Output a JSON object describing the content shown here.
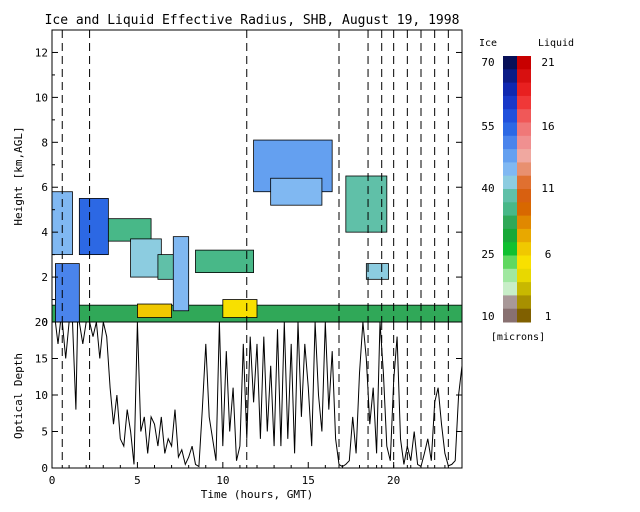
{
  "chart_data": [
    {
      "type": "heatmap",
      "title": "Ice and Liquid Effective Radius, SHB, August 19, 1998",
      "xlabel": "",
      "ylabel": "Height [km,AGL]",
      "xlim": [
        0,
        24
      ],
      "ylim": [
        0,
        13
      ],
      "y_ticks": [
        0,
        2,
        4,
        6,
        8,
        10,
        12
      ],
      "x_ticks": [
        0,
        5,
        10,
        15,
        20
      ],
      "dashed_times": [
        0.6,
        2.2,
        11.4,
        16.8,
        18.5,
        19.3,
        20.0,
        20.8,
        21.6,
        22.4,
        23.2
      ],
      "regions": [
        {
          "x0": 0.0,
          "x1": 24.0,
          "y0": 0.0,
          "y1": 0.75,
          "ice": 32,
          "phase": "ice"
        },
        {
          "x0": 0.2,
          "x1": 1.6,
          "y0": 0.0,
          "y1": 2.6,
          "ice": 50,
          "phase": "ice"
        },
        {
          "x0": 0.0,
          "x1": 1.2,
          "y0": 3.0,
          "y1": 5.8,
          "ice": 45,
          "phase": "ice"
        },
        {
          "x0": 1.6,
          "x1": 3.3,
          "y0": 3.0,
          "y1": 5.5,
          "ice": 55,
          "phase": "ice"
        },
        {
          "x0": 3.3,
          "x1": 5.8,
          "y0": 3.6,
          "y1": 4.6,
          "ice": 36,
          "phase": "ice"
        },
        {
          "x0": 4.6,
          "x1": 6.4,
          "y0": 2.0,
          "y1": 3.7,
          "ice": 42,
          "phase": "ice"
        },
        {
          "x0": 6.2,
          "x1": 7.2,
          "y0": 1.9,
          "y1": 3.0,
          "ice": 40,
          "phase": "ice"
        },
        {
          "x0": 7.1,
          "x1": 8.0,
          "y0": 0.5,
          "y1": 3.8,
          "ice": 44,
          "phase": "ice"
        },
        {
          "x0": 8.4,
          "x1": 11.8,
          "y0": 2.2,
          "y1": 3.2,
          "ice": 34,
          "phase": "ice"
        },
        {
          "x0": 11.8,
          "x1": 16.4,
          "y0": 5.8,
          "y1": 8.1,
          "ice": 48,
          "phase": "ice"
        },
        {
          "x0": 12.8,
          "x1": 15.8,
          "y0": 5.2,
          "y1": 6.4,
          "ice": 44,
          "phase": "ice"
        },
        {
          "x0": 17.2,
          "x1": 19.6,
          "y0": 4.0,
          "y1": 6.5,
          "ice": 38,
          "phase": "ice"
        },
        {
          "x0": 18.4,
          "x1": 19.7,
          "y0": 1.9,
          "y1": 2.6,
          "ice": 42,
          "phase": "ice"
        },
        {
          "x0": 5.0,
          "x1": 7.0,
          "y0": 0.2,
          "y1": 0.8,
          "liquid": 6,
          "phase": "liquid"
        },
        {
          "x0": 10.0,
          "x1": 12.0,
          "y0": 0.2,
          "y1": 1.0,
          "liquid": 5,
          "phase": "liquid"
        }
      ]
    },
    {
      "type": "line",
      "xlabel": "Time (hours, GMT)",
      "ylabel": "Optical Depth",
      "xlim": [
        0,
        24
      ],
      "ylim": [
        0,
        20
      ],
      "y_ticks": [
        0,
        5,
        10,
        15,
        20
      ],
      "x_ticks": [
        0,
        5,
        10,
        15,
        20
      ],
      "x": [
        0.0,
        0.2,
        0.35,
        0.5,
        0.6,
        0.8,
        1.0,
        1.2,
        1.4,
        1.5,
        1.6,
        1.8,
        2.0,
        2.2,
        2.4,
        2.6,
        2.8,
        3.0,
        3.2,
        3.4,
        3.6,
        3.8,
        4.0,
        4.2,
        4.4,
        4.6,
        4.8,
        5.0,
        5.2,
        5.4,
        5.6,
        5.8,
        6.0,
        6.2,
        6.4,
        6.6,
        6.8,
        7.0,
        7.2,
        7.4,
        7.6,
        7.8,
        8.0,
        8.2,
        8.4,
        8.6,
        8.8,
        9.0,
        9.2,
        9.4,
        9.6,
        9.8,
        10.0,
        10.2,
        10.4,
        10.6,
        10.8,
        11.0,
        11.2,
        11.4,
        11.6,
        11.8,
        12.0,
        12.2,
        12.4,
        12.6,
        12.8,
        13.0,
        13.2,
        13.4,
        13.6,
        13.8,
        14.0,
        14.2,
        14.4,
        14.6,
        14.8,
        15.0,
        15.2,
        15.4,
        15.6,
        15.8,
        16.0,
        16.2,
        16.4,
        16.6,
        16.8,
        17.0,
        17.2,
        17.4,
        17.6,
        17.8,
        18.0,
        18.2,
        18.4,
        18.6,
        18.8,
        19.0,
        19.2,
        19.4,
        19.6,
        19.8,
        20.0,
        20.2,
        20.4,
        20.6,
        20.8,
        21.0,
        21.2,
        21.4,
        21.6,
        21.8,
        22.0,
        22.2,
        22.4,
        22.6,
        22.8,
        23.0,
        23.2,
        23.4,
        23.6,
        23.8,
        24.0
      ],
      "y": [
        20,
        20,
        17,
        20,
        20,
        15,
        20,
        20,
        8,
        20,
        20,
        17,
        20,
        20,
        18,
        20,
        15,
        20,
        18,
        11,
        6,
        10,
        4,
        3,
        8,
        5,
        0.5,
        20,
        5,
        7,
        2,
        7,
        6,
        3,
        7,
        2,
        4,
        3,
        8,
        1.5,
        2.5,
        0.5,
        1.5,
        3,
        0.5,
        0.2,
        8,
        17,
        7,
        4,
        1,
        20,
        3,
        16,
        5,
        11,
        1,
        3,
        17,
        4,
        18,
        9,
        17,
        4,
        18,
        5,
        14,
        3,
        19,
        3,
        20,
        4,
        17,
        2,
        20,
        7,
        17,
        11,
        3,
        20,
        10,
        5,
        20,
        8,
        16,
        4,
        0.5,
        0.2,
        0.5,
        1,
        7,
        2,
        13,
        20,
        15,
        6,
        11,
        2,
        20,
        13,
        3,
        1,
        12,
        18,
        4,
        0.5,
        3,
        1,
        5,
        0.5,
        0.2,
        2,
        4,
        1,
        9,
        11,
        6,
        2,
        0.3,
        0.5,
        1,
        10,
        14
      ]
    }
  ],
  "colorbar": {
    "ice_label": "Ice",
    "liquid_label": "Liquid",
    "units": "[microns]",
    "ice_ticks": [
      "70",
      "55",
      "40",
      "25",
      "10"
    ],
    "liquid_ticks": [
      "21",
      "16",
      "11",
      "6",
      "1"
    ],
    "ice_colors": [
      "#081058",
      "#0c1c86",
      "#1028b0",
      "#1838c8",
      "#2050dc",
      "#2c68e4",
      "#4a84ec",
      "#64a0f0",
      "#80b8f2",
      "#8ccce0",
      "#60c0a8",
      "#48b888",
      "#30a858",
      "#18a838",
      "#10c030",
      "#60d860",
      "#a0e8a0",
      "#c8eec8",
      "#a89898",
      "#887070"
    ],
    "liquid_colors": [
      "#c80000",
      "#d81010",
      "#e82020",
      "#f03838",
      "#f05858",
      "#f07878",
      "#f09090",
      "#f0a8a0",
      "#e89070",
      "#e07030",
      "#d86010",
      "#d86800",
      "#e08800",
      "#e8a800",
      "#f0c800",
      "#f8e000",
      "#e8d800",
      "#c8b800",
      "#a89000",
      "#806000"
    ]
  }
}
